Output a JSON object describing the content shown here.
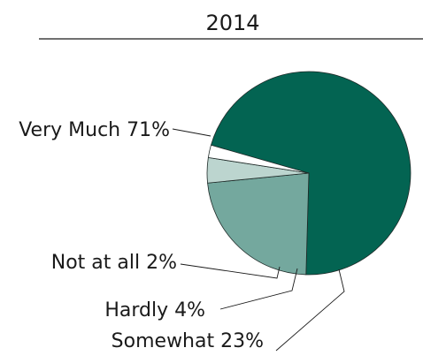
{
  "chart_data": {
    "type": "pie",
    "title": "2014",
    "slices": [
      {
        "label": "Very Much",
        "value": 71,
        "value_label": "71%",
        "color": "#036452"
      },
      {
        "label": "Somewhat",
        "value": 23,
        "value_label": "23%",
        "color": "#74a89e"
      },
      {
        "label": "Hardly",
        "value": 4,
        "value_label": "4%",
        "color": "#bcd5cf"
      },
      {
        "label": "Not at all",
        "value": 2,
        "value_label": "2%",
        "color": "#ffffff"
      }
    ],
    "legend": "none",
    "grid": false
  }
}
